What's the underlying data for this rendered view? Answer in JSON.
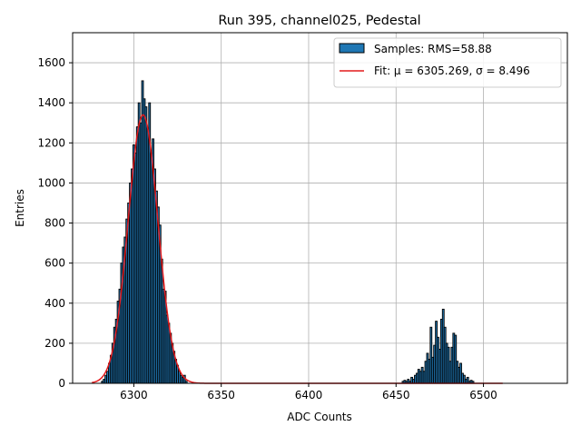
{
  "chart_data": {
    "type": "bar",
    "title": "Run 395, channel025, Pedestal",
    "xlabel": "ADC Counts",
    "ylabel": "Entries",
    "xlim": [
      6265,
      6548
    ],
    "ylim": [
      0,
      1750
    ],
    "xticks": [
      6300,
      6350,
      6400,
      6450,
      6500
    ],
    "yticks": [
      0,
      200,
      400,
      600,
      800,
      1000,
      1200,
      1400,
      1600
    ],
    "grid": true,
    "legend_position": "top-right",
    "colors": {
      "bars": "#1f77b4",
      "bar_edge": "#000000",
      "fit": "#e41a1c",
      "grid": "#b0b0b0"
    },
    "histogram": {
      "name": "Samples: RMS=58.88",
      "bin_width": 1,
      "bins": [
        {
          "x": 6282,
          "y": 10
        },
        {
          "x": 6283,
          "y": 20
        },
        {
          "x": 6284,
          "y": 40
        },
        {
          "x": 6285,
          "y": 60
        },
        {
          "x": 6286,
          "y": 100
        },
        {
          "x": 6287,
          "y": 140
        },
        {
          "x": 6288,
          "y": 200
        },
        {
          "x": 6289,
          "y": 280
        },
        {
          "x": 6290,
          "y": 320
        },
        {
          "x": 6291,
          "y": 410
        },
        {
          "x": 6292,
          "y": 470
        },
        {
          "x": 6293,
          "y": 600
        },
        {
          "x": 6294,
          "y": 680
        },
        {
          "x": 6295,
          "y": 730
        },
        {
          "x": 6296,
          "y": 820
        },
        {
          "x": 6297,
          "y": 900
        },
        {
          "x": 6298,
          "y": 1000
        },
        {
          "x": 6299,
          "y": 1070
        },
        {
          "x": 6300,
          "y": 1190
        },
        {
          "x": 6301,
          "y": 1150
        },
        {
          "x": 6302,
          "y": 1280
        },
        {
          "x": 6303,
          "y": 1400
        },
        {
          "x": 6304,
          "y": 1300
        },
        {
          "x": 6305,
          "y": 1510
        },
        {
          "x": 6306,
          "y": 1420
        },
        {
          "x": 6307,
          "y": 1380
        },
        {
          "x": 6308,
          "y": 1270
        },
        {
          "x": 6309,
          "y": 1400
        },
        {
          "x": 6310,
          "y": 1150
        },
        {
          "x": 6311,
          "y": 1220
        },
        {
          "x": 6312,
          "y": 1070
        },
        {
          "x": 6313,
          "y": 960
        },
        {
          "x": 6314,
          "y": 880
        },
        {
          "x": 6315,
          "y": 790
        },
        {
          "x": 6316,
          "y": 620
        },
        {
          "x": 6317,
          "y": 470
        },
        {
          "x": 6318,
          "y": 460
        },
        {
          "x": 6319,
          "y": 340
        },
        {
          "x": 6320,
          "y": 300
        },
        {
          "x": 6321,
          "y": 250
        },
        {
          "x": 6322,
          "y": 200
        },
        {
          "x": 6323,
          "y": 160
        },
        {
          "x": 6324,
          "y": 120
        },
        {
          "x": 6325,
          "y": 90
        },
        {
          "x": 6326,
          "y": 60
        },
        {
          "x": 6327,
          "y": 40
        },
        {
          "x": 6328,
          "y": 30
        },
        {
          "x": 6329,
          "y": 40
        },
        {
          "x": 6330,
          "y": 10
        },
        {
          "x": 6454,
          "y": 10
        },
        {
          "x": 6455,
          "y": 15
        },
        {
          "x": 6456,
          "y": 10
        },
        {
          "x": 6457,
          "y": 20
        },
        {
          "x": 6458,
          "y": 10
        },
        {
          "x": 6459,
          "y": 30
        },
        {
          "x": 6460,
          "y": 20
        },
        {
          "x": 6461,
          "y": 40
        },
        {
          "x": 6462,
          "y": 50
        },
        {
          "x": 6463,
          "y": 70
        },
        {
          "x": 6464,
          "y": 60
        },
        {
          "x": 6465,
          "y": 80
        },
        {
          "x": 6466,
          "y": 60
        },
        {
          "x": 6467,
          "y": 110
        },
        {
          "x": 6468,
          "y": 150
        },
        {
          "x": 6469,
          "y": 120
        },
        {
          "x": 6470,
          "y": 280
        },
        {
          "x": 6471,
          "y": 130
        },
        {
          "x": 6472,
          "y": 190
        },
        {
          "x": 6473,
          "y": 310
        },
        {
          "x": 6474,
          "y": 230
        },
        {
          "x": 6475,
          "y": 170
        },
        {
          "x": 6476,
          "y": 320
        },
        {
          "x": 6477,
          "y": 370
        },
        {
          "x": 6478,
          "y": 280
        },
        {
          "x": 6479,
          "y": 200
        },
        {
          "x": 6480,
          "y": 180
        },
        {
          "x": 6481,
          "y": 110
        },
        {
          "x": 6482,
          "y": 180
        },
        {
          "x": 6483,
          "y": 250
        },
        {
          "x": 6484,
          "y": 240
        },
        {
          "x": 6485,
          "y": 110
        },
        {
          "x": 6486,
          "y": 80
        },
        {
          "x": 6487,
          "y": 100
        },
        {
          "x": 6488,
          "y": 50
        },
        {
          "x": 6489,
          "y": 40
        },
        {
          "x": 6490,
          "y": 20
        },
        {
          "x": 6491,
          "y": 30
        },
        {
          "x": 6492,
          "y": 10
        },
        {
          "x": 6493,
          "y": 15
        },
        {
          "x": 6494,
          "y": 10
        }
      ]
    },
    "fit": {
      "name": "Fit: μ = 6305.269, σ = 8.496",
      "mu": 6305.269,
      "sigma": 8.496,
      "amplitude": 1340,
      "x_range": [
        6276,
        6511
      ]
    }
  }
}
